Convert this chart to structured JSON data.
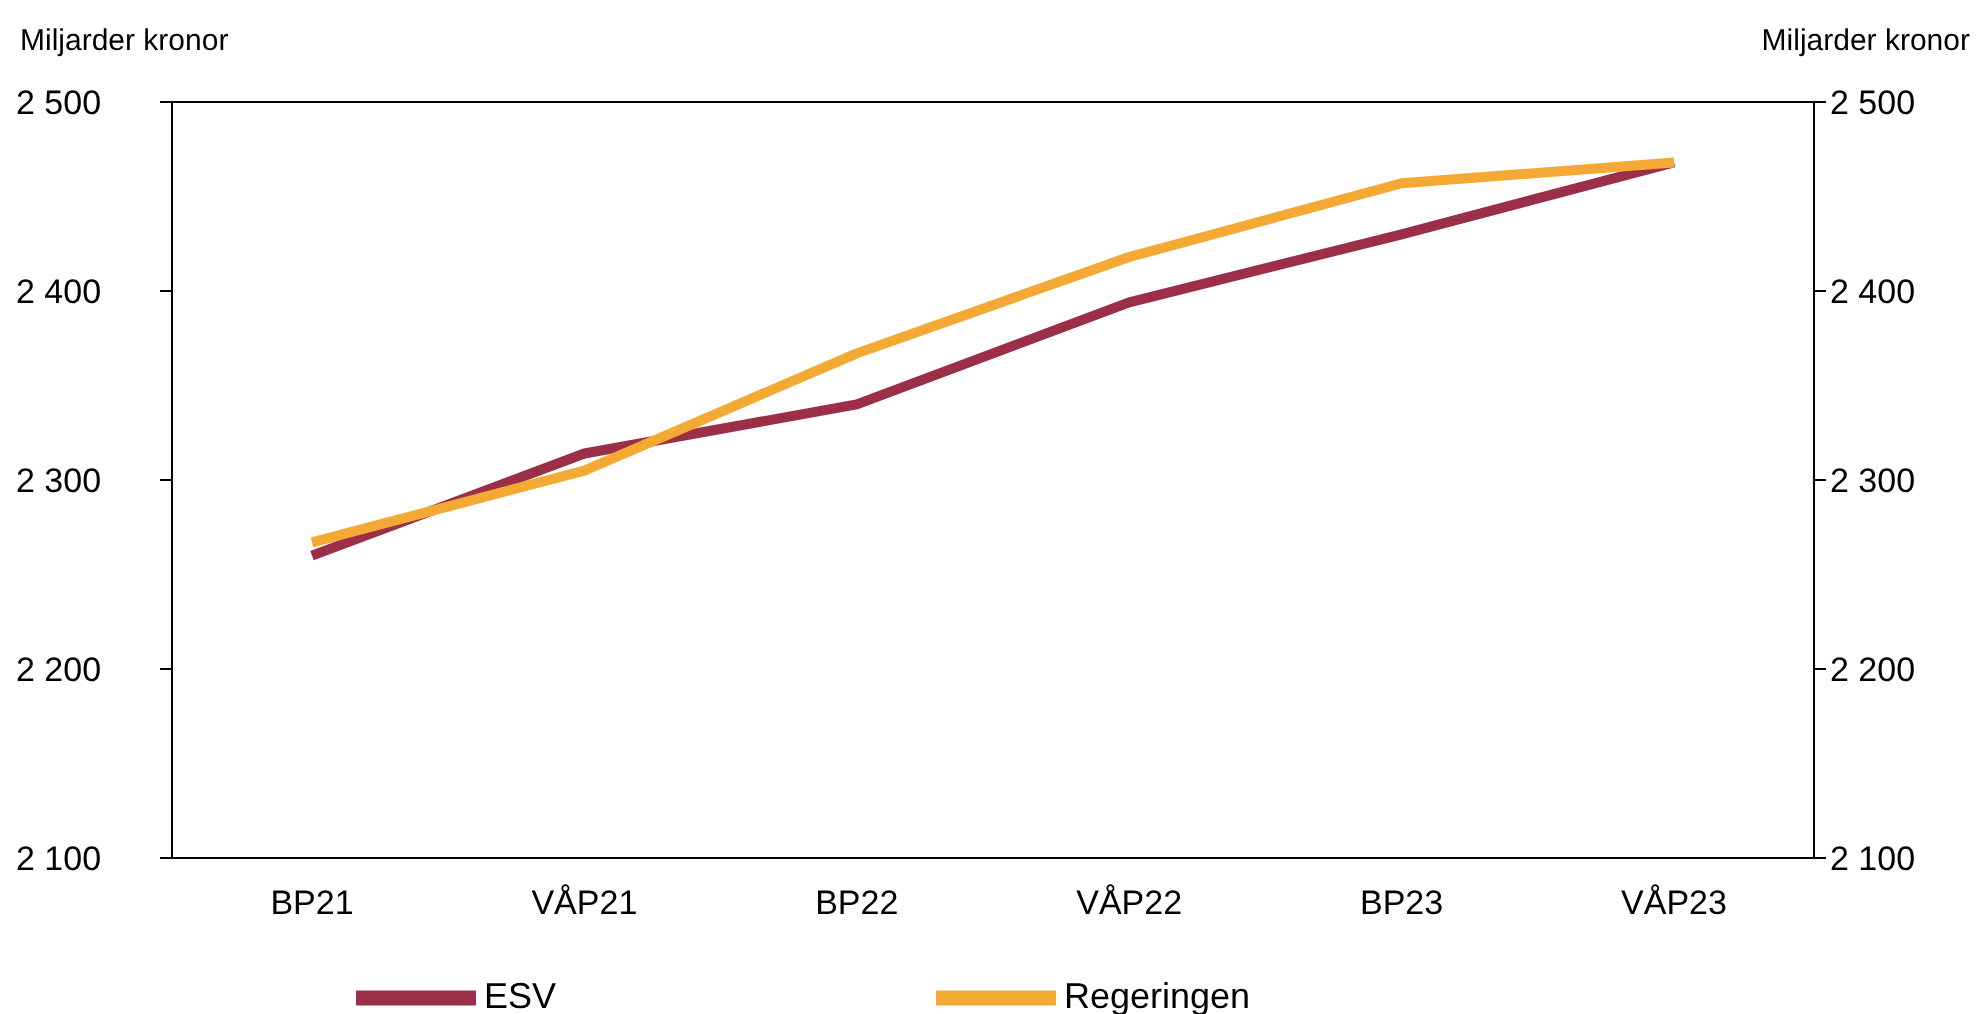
{
  "chart_data": {
    "type": "line",
    "ylabel": "Miljarder kronor",
    "y2label": "Miljarder kronor",
    "categories": [
      "BP21",
      "VÅP21",
      "BP22",
      "VÅP22",
      "BP23",
      "VÅP23"
    ],
    "series": [
      {
        "name": "ESV",
        "color": "#9b2f48",
        "values": [
          2260,
          2314,
          2340,
          2394,
          2430,
          2468
        ]
      },
      {
        "name": "Regeringen",
        "color": "#f4a934",
        "values": [
          2267,
          2305,
          2367,
          2418,
          2457,
          2468
        ]
      }
    ],
    "ylim": [
      2100,
      2500
    ],
    "yticks": [
      {
        "value": 2100,
        "label": "2 100"
      },
      {
        "value": 2200,
        "label": "2 200"
      },
      {
        "value": 2300,
        "label": "2 300"
      },
      {
        "value": 2400,
        "label": "2 400"
      },
      {
        "value": 2500,
        "label": "2 500"
      }
    ],
    "y2lim": [
      2100,
      2500
    ],
    "y2ticks": [
      {
        "value": 2100,
        "label": "2 100"
      },
      {
        "value": 2200,
        "label": "2 200"
      },
      {
        "value": 2300,
        "label": "2 300"
      },
      {
        "value": 2400,
        "label": "2 400"
      },
      {
        "value": 2500,
        "label": "2 500"
      }
    ],
    "legend": "bottom",
    "marker": "none",
    "line_style": "solid",
    "grid": false
  }
}
